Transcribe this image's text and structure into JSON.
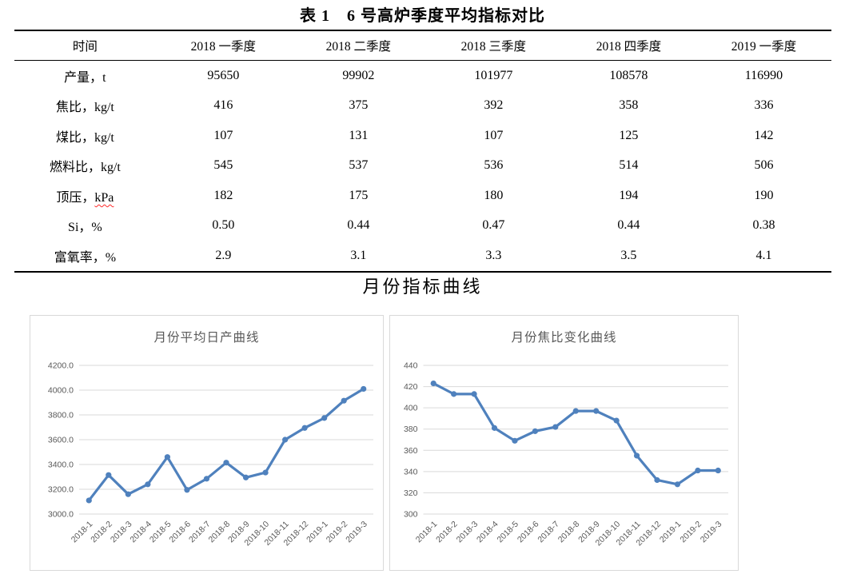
{
  "doc": {
    "table_title": "表 1　6 号高炉季度平均指标对比",
    "section_title": "月份指标曲线"
  },
  "table": {
    "headers": [
      "时间",
      "2018 一季度",
      "2018 二季度",
      "2018 三季度",
      "2018 四季度",
      "2019 一季度"
    ],
    "rows": [
      {
        "label": "产量，t",
        "values": [
          "95650",
          "99902",
          "101977",
          "108578",
          "116990"
        ]
      },
      {
        "label": "焦比，kg/t",
        "values": [
          "416",
          "375",
          "392",
          "358",
          "336"
        ]
      },
      {
        "label": "煤比，kg/t",
        "values": [
          "107",
          "131",
          "107",
          "125",
          "142"
        ]
      },
      {
        "label": "燃料比，kg/t",
        "values": [
          "545",
          "537",
          "536",
          "514",
          "506"
        ]
      },
      {
        "label": "顶压，kPa",
        "spellcheck": "kPa",
        "values": [
          "182",
          "175",
          "180",
          "194",
          "190"
        ]
      },
      {
        "label": "Si，%",
        "values": [
          "0.50",
          "0.44",
          "0.47",
          "0.44",
          "0.38"
        ]
      },
      {
        "label": "富氧率，%",
        "values": [
          "2.9",
          "3.1",
          "3.3",
          "3.5",
          "4.1"
        ]
      }
    ]
  },
  "chart_data": [
    {
      "type": "line",
      "title": "月份平均日产曲线",
      "x": [
        "2018-1",
        "2018-2",
        "2018-3",
        "2018-4",
        "2018-5",
        "2018-6",
        "2018-7",
        "2018-8",
        "2018-9",
        "2018-10",
        "2018-11",
        "2018-12",
        "2019-1",
        "2019-2",
        "2019-3"
      ],
      "values": [
        3110,
        3315,
        3160,
        3240,
        3460,
        3195,
        3285,
        3415,
        3295,
        3335,
        3600,
        3695,
        3775,
        3915,
        4010
      ],
      "ylim": [
        3000,
        4200
      ],
      "ytick_step": 200,
      "ytick_decimals": 1,
      "xlabel": "",
      "ylabel": "",
      "grid": true,
      "legend": "none",
      "line_color": "#4F81BD"
    },
    {
      "type": "line",
      "title": "月份焦比变化曲线",
      "x": [
        "2018-1",
        "2018-2",
        "2018-3",
        "2018-4",
        "2018-5",
        "2018-6",
        "2018-7",
        "2018-8",
        "2018-9",
        "2018-10",
        "2018-11",
        "2018-12",
        "2019-1",
        "2019-2",
        "2019-3"
      ],
      "values": [
        423,
        413,
        413,
        381,
        369,
        378,
        382,
        397,
        397,
        388,
        355,
        332,
        328,
        341,
        341
      ],
      "ylim": [
        300,
        440
      ],
      "ytick_step": 20,
      "ytick_decimals": 0,
      "xlabel": "",
      "ylabel": "",
      "grid": true,
      "legend": "none",
      "line_color": "#4F81BD"
    }
  ],
  "colors": {
    "accent_line": "#4F81BD",
    "gridline": "#D9D9D9",
    "chart_text": "#595959",
    "spellcheck_underline": "#FF2A2A"
  }
}
